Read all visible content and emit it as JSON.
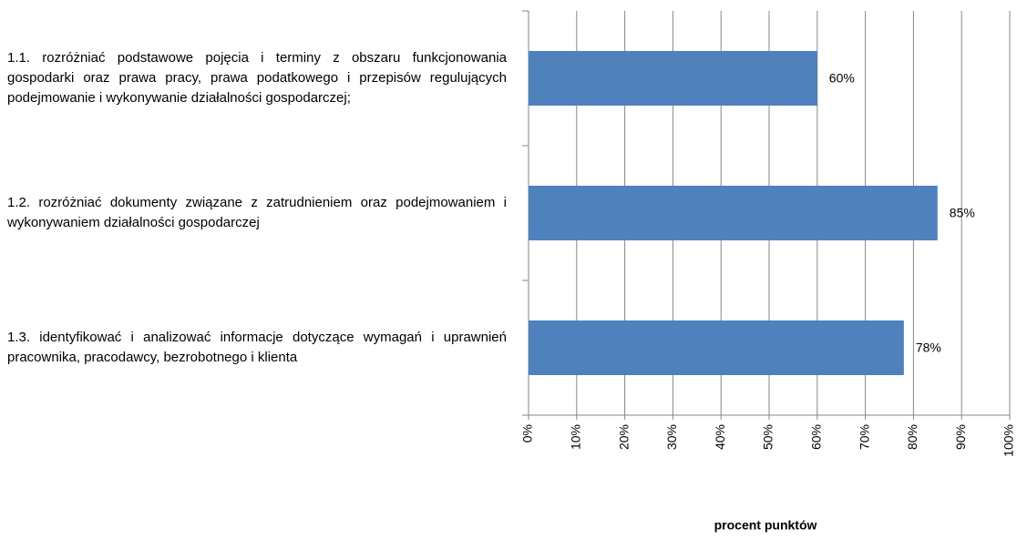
{
  "chart_data": {
    "type": "barh",
    "categories": [
      "1.1. rozróżniać podstawowe pojęcia i terminy z obszaru funkcjonowania gospodarki oraz prawa pracy, prawa podatkowego i przepisów regulujących podejmowanie i wykonywanie działalności gospodarczej;",
      "1.2. rozróżniać dokumenty związane z zatrudnieniem oraz podejmowaniem i wykonywaniem działalności gospodarczej",
      "1.3. identyfikować i analizować informacje dotyczące wymagań i uprawnień pracownika, pracodawcy, bezrobotnego i klienta"
    ],
    "values": [
      60,
      85,
      78
    ],
    "value_labels": [
      "60%",
      "85%",
      "78%"
    ],
    "color": "#4f81bd",
    "xlabel": "procent punktów",
    "xlim": [
      0,
      100
    ],
    "xticks": [
      {
        "value": 0,
        "label": "0%"
      },
      {
        "value": 10,
        "label": "10%"
      },
      {
        "value": 20,
        "label": "20%"
      },
      {
        "value": 30,
        "label": "30%"
      },
      {
        "value": 40,
        "label": "40%"
      },
      {
        "value": 50,
        "label": "50%"
      },
      {
        "value": 60,
        "label": "60%"
      },
      {
        "value": 70,
        "label": "70%"
      },
      {
        "value": 80,
        "label": "80%"
      },
      {
        "value": 90,
        "label": "90%"
      },
      {
        "value": 100,
        "label": "100%"
      }
    ],
    "grid": true
  }
}
